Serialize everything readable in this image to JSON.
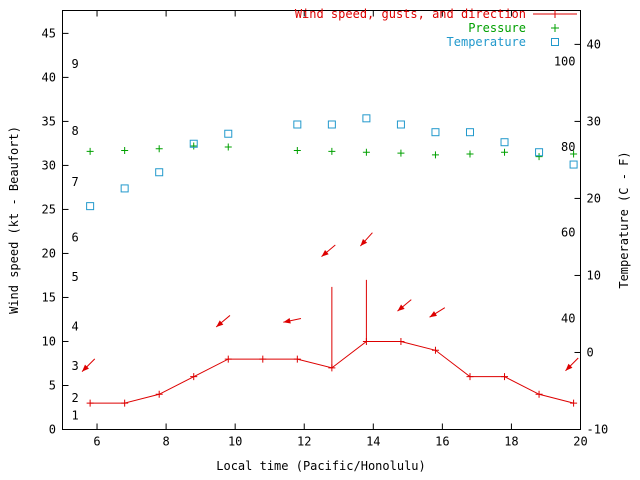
{
  "legend": {
    "items": [
      {
        "name": "wind",
        "label": "Wind speed, gusts, and direction",
        "color": "#dd0000",
        "marker": "line-plus"
      },
      {
        "name": "pressure",
        "label": "Pressure",
        "color": "#00a000",
        "marker": "plus"
      },
      {
        "name": "temperature",
        "label": "Temperature",
        "color": "#2299cc",
        "marker": "open-square"
      }
    ]
  },
  "chart_data": {
    "type": "line",
    "title": "",
    "xlabel": "Local time (Pacific/Honolulu)",
    "ylabel_left": "Wind speed (kt - Beaufort)",
    "ylabel_right": "Temperature (C - F)",
    "grid": false,
    "legend_position": "top-right",
    "x_range": [
      5,
      20
    ],
    "x_ticks": [
      6,
      8,
      10,
      12,
      14,
      16,
      18,
      20
    ],
    "y_left_range": [
      0,
      47.6
    ],
    "y_left_ticks": [
      0,
      5,
      10,
      15,
      20,
      25,
      30,
      35,
      40,
      45
    ],
    "beaufort_labels": [
      {
        "label": "1",
        "kt": 1.6
      },
      {
        "label": "2",
        "kt": 3.6
      },
      {
        "label": "3",
        "kt": 7.2
      },
      {
        "label": "4",
        "kt": 11.7
      },
      {
        "label": "5",
        "kt": 17.3
      },
      {
        "label": "6",
        "kt": 21.8
      },
      {
        "label": "7",
        "kt": 28.1
      },
      {
        "label": "8",
        "kt": 33.9
      },
      {
        "label": "9",
        "kt": 41.5
      }
    ],
    "y_right_range": [
      -10,
      44.4
    ],
    "y_right_ticks": [
      -10,
      0,
      10,
      20,
      30,
      40
    ],
    "fahrenheit_labels": [
      {
        "label": "40",
        "c": 4.4
      },
      {
        "label": "60",
        "c": 15.6
      },
      {
        "label": "80",
        "c": 26.7
      },
      {
        "label": "100",
        "c": 37.8
      }
    ],
    "series": [
      {
        "name": "Wind speed, gusts, and direction",
        "axis": "left",
        "color": "#dd0000",
        "marker": "plus",
        "line": true,
        "x": [
          5.8,
          6.8,
          7.8,
          8.8,
          9.8,
          10.8,
          11.8,
          12.8,
          13.8,
          14.8,
          15.8,
          16.8,
          17.8,
          18.8,
          19.8
        ],
        "y": [
          3,
          3,
          4,
          6,
          8,
          8,
          8,
          7,
          10,
          10,
          9,
          6,
          6,
          4,
          3
        ]
      },
      {
        "name": "Gusts",
        "axis": "left",
        "color": "#dd0000",
        "type": "impulses",
        "points": [
          {
            "x": 12.8,
            "from": 7,
            "to": 16.2
          },
          {
            "x": 13.8,
            "from": 10,
            "to": 17
          }
        ]
      },
      {
        "name": "Pressure",
        "axis": "left",
        "color": "#00a000",
        "marker": "plus",
        "line": false,
        "x": [
          5.8,
          6.8,
          7.8,
          8.8,
          9.8,
          11.8,
          12.8,
          13.8,
          14.8,
          15.8,
          16.8,
          17.8,
          18.8,
          19.8
        ],
        "y": [
          31.6,
          31.7,
          31.9,
          32.2,
          32.1,
          31.7,
          31.6,
          31.5,
          31.4,
          31.2,
          31.3,
          31.5,
          31.0,
          31.3
        ]
      },
      {
        "name": "Temperature",
        "axis": "right",
        "color": "#2299cc",
        "marker": "square",
        "line": false,
        "x": [
          5.8,
          6.8,
          7.8,
          8.8,
          9.8,
          11.8,
          12.8,
          13.8,
          14.8,
          15.8,
          16.8,
          17.8,
          18.8,
          19.8
        ],
        "y": [
          19.0,
          21.3,
          23.4,
          27.1,
          28.4,
          29.6,
          29.6,
          30.4,
          29.6,
          28.6,
          28.6,
          27.3,
          26.0,
          24.4
        ]
      }
    ],
    "wind_direction_arrows": [
      {
        "x": 5.75,
        "y": 7.3,
        "angle": 135
      },
      {
        "x": 9.65,
        "y": 12.3,
        "angle": 140
      },
      {
        "x": 11.65,
        "y": 12.4,
        "angle": 168
      },
      {
        "x": 12.7,
        "y": 20.3,
        "angle": 140
      },
      {
        "x": 13.8,
        "y": 21.6,
        "angle": 132
      },
      {
        "x": 14.9,
        "y": 14.1,
        "angle": 140
      },
      {
        "x": 15.85,
        "y": 13.3,
        "angle": 148
      },
      {
        "x": 19.75,
        "y": 7.4,
        "angle": 135
      }
    ]
  }
}
